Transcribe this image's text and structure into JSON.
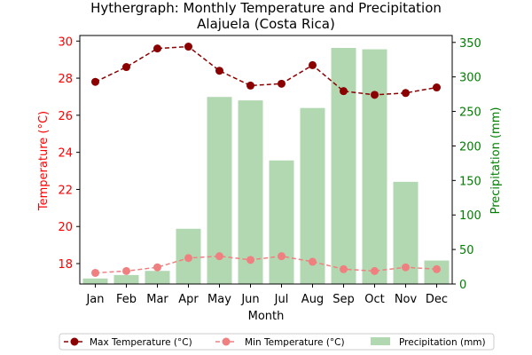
{
  "chart_data": {
    "type": "bar+line",
    "title_line1": "Hythergraph: Monthly Temperature and Precipitation",
    "title_line2": "Alajuela (Costa Rica)",
    "xlabel": "Month",
    "ylabel_left": "Temperature (°C)",
    "ylabel_right": "Precipitation (mm)",
    "categories": [
      "Jan",
      "Feb",
      "Mar",
      "Apr",
      "May",
      "Jun",
      "Jul",
      "Aug",
      "Sep",
      "Oct",
      "Nov",
      "Dec"
    ],
    "y_left_lim": [
      16.9,
      30.3
    ],
    "y_left_ticks": [
      18,
      20,
      22,
      24,
      26,
      28,
      30
    ],
    "y_right_lim": [
      0,
      360
    ],
    "y_right_ticks": [
      0,
      50,
      100,
      150,
      200,
      250,
      300,
      350
    ],
    "series": [
      {
        "name": "Max Temperature (°C)",
        "axis": "left",
        "kind": "line",
        "style": "dashed",
        "marker": "circle",
        "color": "#8b0000",
        "values": [
          27.8,
          28.6,
          29.6,
          29.7,
          28.4,
          27.6,
          27.7,
          28.7,
          27.3,
          27.1,
          27.2,
          27.5
        ]
      },
      {
        "name": "Min Temperature (°C)",
        "axis": "left",
        "kind": "line",
        "style": "dashed",
        "marker": "circle",
        "color": "#f08080",
        "values": [
          17.5,
          17.6,
          17.8,
          18.3,
          18.4,
          18.2,
          18.4,
          18.1,
          17.7,
          17.6,
          17.8,
          17.7
        ]
      },
      {
        "name": "Precipitation (mm)",
        "axis": "right",
        "kind": "bar",
        "color": "#b2d8b2",
        "values": [
          8,
          13,
          19,
          80,
          271,
          266,
          179,
          255,
          342,
          340,
          148,
          34
        ]
      }
    ],
    "left_axis_color": "#ff0000",
    "right_axis_color": "#008000",
    "legend_placement": "bottom-center",
    "grid": false
  }
}
